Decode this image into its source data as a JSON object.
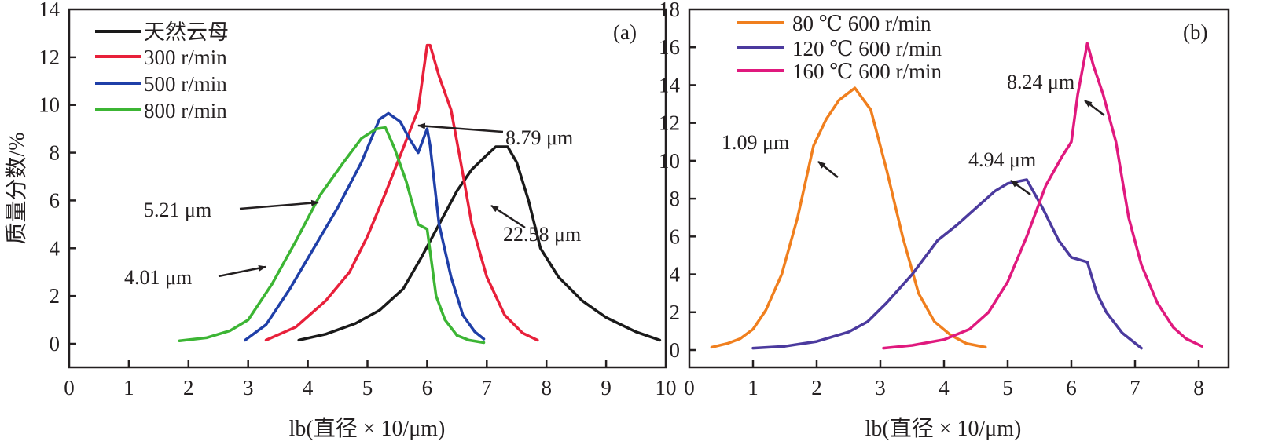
{
  "chart_data": [
    {
      "type": "line",
      "panel_label": "(a)",
      "title": "",
      "xlabel": "lb(直径 × 10/μm)",
      "ylabel": "质量分数/%",
      "xlim": [
        0,
        10
      ],
      "ylim": [
        -1,
        14
      ],
      "xticks": [
        0,
        1,
        2,
        3,
        4,
        5,
        6,
        7,
        8,
        9,
        10
      ],
      "yticks": [
        0,
        2,
        4,
        6,
        8,
        10,
        12,
        14
      ],
      "grid": false,
      "legend_position": "top-left",
      "series": [
        {
          "name": "天然云母",
          "color": "#1a1a1a",
          "x": [
            3.85,
            4.3,
            4.8,
            5.2,
            5.6,
            5.9,
            6.2,
            6.5,
            6.75,
            7.0,
            7.15,
            7.35,
            7.5,
            7.7,
            7.9,
            8.2,
            8.6,
            9.0,
            9.5,
            9.9
          ],
          "y": [
            0.15,
            0.4,
            0.85,
            1.4,
            2.3,
            3.6,
            5.0,
            6.4,
            7.3,
            7.9,
            8.25,
            8.25,
            7.6,
            6.0,
            4.0,
            2.8,
            1.8,
            1.1,
            0.5,
            0.15
          ]
        },
        {
          "name": "300 r/min",
          "color": "#e8203a",
          "x": [
            3.3,
            3.8,
            4.3,
            4.7,
            5.0,
            5.3,
            5.6,
            5.85,
            6.0,
            6.05,
            6.2,
            6.4,
            6.55,
            6.75,
            7.0,
            7.3,
            7.6,
            7.85
          ],
          "y": [
            0.15,
            0.7,
            1.8,
            3.0,
            4.5,
            6.3,
            8.2,
            9.8,
            12.5,
            12.5,
            11.2,
            9.8,
            7.8,
            5.0,
            2.8,
            1.2,
            0.45,
            0.15
          ]
        },
        {
          "name": "500 r/min",
          "color": "#1f3fa8",
          "x": [
            2.95,
            3.3,
            3.7,
            4.1,
            4.5,
            4.9,
            5.2,
            5.35,
            5.55,
            5.7,
            5.85,
            6.0,
            6.05,
            6.2,
            6.4,
            6.6,
            6.8,
            6.95
          ],
          "y": [
            0.15,
            0.8,
            2.3,
            4.0,
            5.7,
            7.6,
            9.4,
            9.65,
            9.3,
            8.6,
            8.0,
            9.0,
            8.3,
            5.0,
            2.8,
            1.2,
            0.5,
            0.2
          ]
        },
        {
          "name": "800 r/min",
          "color": "#3cb534",
          "x": [
            1.85,
            2.3,
            2.7,
            3.0,
            3.4,
            3.8,
            4.2,
            4.6,
            4.9,
            5.15,
            5.3,
            5.45,
            5.65,
            5.85,
            6.0,
            6.15,
            6.3,
            6.5,
            6.7,
            6.95
          ],
          "y": [
            0.12,
            0.25,
            0.55,
            1.0,
            2.5,
            4.3,
            6.2,
            7.6,
            8.6,
            9.0,
            9.05,
            8.2,
            6.8,
            5.0,
            4.8,
            2.0,
            1.0,
            0.35,
            0.15,
            0.05
          ]
        }
      ],
      "annotations": [
        {
          "text": "8.79 μm",
          "series": "300 r/min"
        },
        {
          "text": "22.58 μm",
          "series": "天然云母"
        },
        {
          "text": "5.21 μm",
          "series": "500 r/min"
        },
        {
          "text": "4.01 μm",
          "series": "800 r/min"
        }
      ]
    },
    {
      "type": "line",
      "panel_label": "(b)",
      "title": "",
      "xlabel": "lb(直径 × 10/μm)",
      "ylabel": "",
      "xlim": [
        0,
        8.4
      ],
      "ylim": [
        -1,
        18
      ],
      "xticks": [
        0,
        1,
        2,
        3,
        4,
        5,
        6,
        7,
        8
      ],
      "yticks": [
        0,
        2,
        4,
        6,
        8,
        10,
        12,
        14,
        16,
        18
      ],
      "grid": false,
      "legend_position": "top-left",
      "series": [
        {
          "name": "80 ℃ 600 r/min",
          "color": "#f07f1e",
          "x": [
            0.35,
            0.6,
            0.8,
            1.0,
            1.2,
            1.45,
            1.7,
            1.95,
            2.15,
            2.35,
            2.6,
            2.85,
            3.1,
            3.35,
            3.6,
            3.85,
            4.1,
            4.35,
            4.65
          ],
          "y": [
            0.15,
            0.35,
            0.6,
            1.1,
            2.1,
            4.0,
            7.0,
            10.8,
            12.2,
            13.2,
            13.85,
            12.7,
            9.5,
            6.0,
            3.0,
            1.5,
            0.8,
            0.35,
            0.15
          ]
        },
        {
          "name": "120 ℃ 600 r/min",
          "color": "#4b3a9e",
          "x": [
            1.0,
            1.5,
            2.0,
            2.5,
            2.8,
            3.1,
            3.5,
            3.9,
            4.2,
            4.5,
            4.8,
            5.0,
            5.3,
            5.55,
            5.8,
            6.0,
            6.25,
            6.4,
            6.55,
            6.8,
            7.1
          ],
          "y": [
            0.1,
            0.2,
            0.45,
            0.95,
            1.5,
            2.5,
            4.0,
            5.8,
            6.6,
            7.5,
            8.4,
            8.8,
            9.0,
            7.5,
            5.8,
            4.9,
            4.65,
            3.0,
            2.0,
            0.9,
            0.1
          ]
        },
        {
          "name": "160 ℃ 600 r/min",
          "color": "#e0197e",
          "x": [
            3.05,
            3.5,
            4.0,
            4.4,
            4.7,
            5.0,
            5.3,
            5.6,
            5.85,
            6.0,
            6.1,
            6.25,
            6.35,
            6.5,
            6.7,
            6.9,
            7.1,
            7.35,
            7.6,
            7.8,
            8.05
          ],
          "y": [
            0.1,
            0.25,
            0.55,
            1.1,
            2.0,
            3.6,
            6.0,
            8.7,
            10.2,
            11.0,
            13.5,
            16.2,
            15.0,
            13.5,
            11.0,
            7.0,
            4.5,
            2.5,
            1.2,
            0.6,
            0.2
          ]
        }
      ],
      "annotations": [
        {
          "text": "1.09 μm",
          "series": "80 ℃ 600 r/min"
        },
        {
          "text": "4.94 μm",
          "series": "120 ℃ 600 r/min"
        },
        {
          "text": "8.24 μm",
          "series": "160 ℃ 600 r/min"
        }
      ]
    }
  ]
}
